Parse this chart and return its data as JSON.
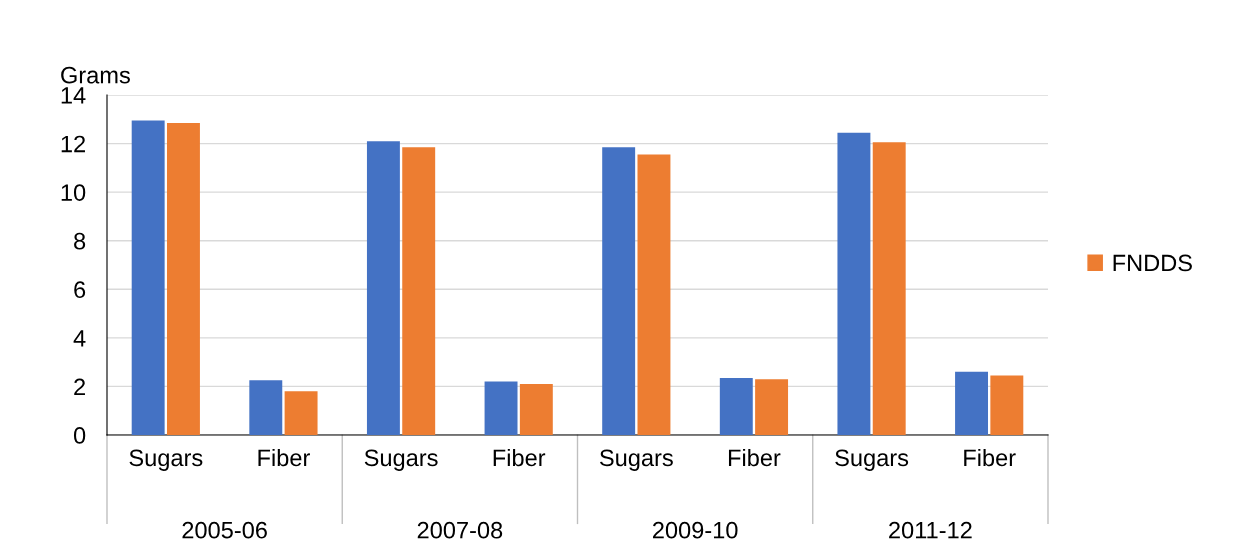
{
  "chart_data": {
    "type": "bar",
    "ylabel": "Grams",
    "categories": [
      "Sugars",
      "Fiber",
      "Sugars",
      "Fiber",
      "Sugars",
      "Fiber",
      "Sugars",
      "Fiber"
    ],
    "series": [
      {
        "color": "#4472c4",
        "values": [
          12.95,
          2.25,
          12.1,
          2.2,
          11.85,
          2.35,
          12.45,
          2.6
        ]
      },
      {
        "name": "FNDDS",
        "color": "#ed7d31",
        "values": [
          12.85,
          1.8,
          11.85,
          2.1,
          11.55,
          2.3,
          12.05,
          2.45
        ]
      }
    ],
    "annotations": [
      "2005-06",
      "2007-08",
      "2009-10",
      "2011-12"
    ],
    "ylim": [
      0,
      14
    ],
    "yticks": [
      0,
      2,
      4,
      6,
      8,
      10,
      12,
      14
    ],
    "grid": "y",
    "legend": "right"
  }
}
